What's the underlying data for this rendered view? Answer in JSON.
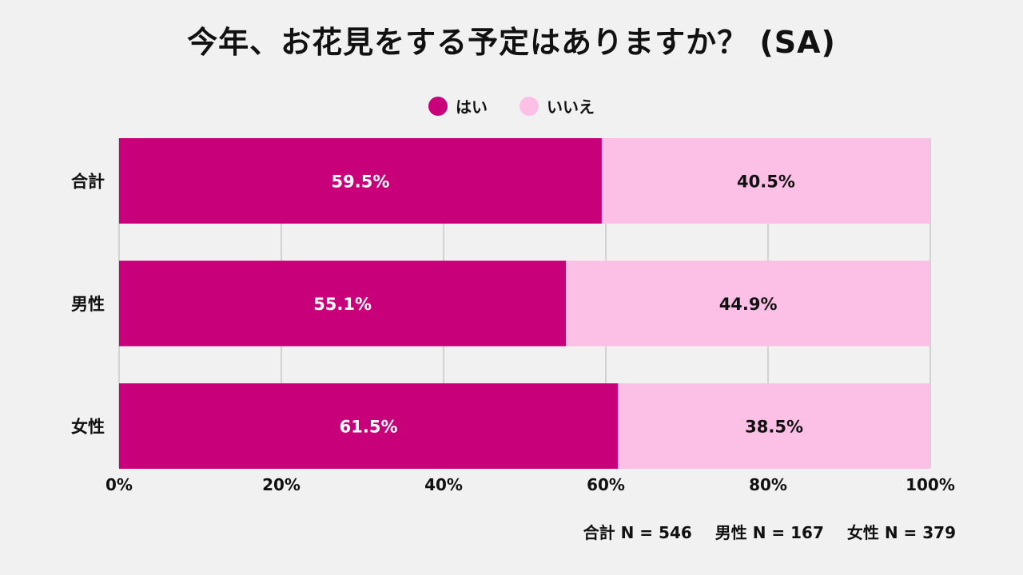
{
  "chart_data": {
    "type": "bar",
    "orientation": "horizontal",
    "stacked": true,
    "title": "今年、お花見をする予定はありますか？ (SA)",
    "categories": [
      "合計",
      "男性",
      "女性"
    ],
    "series": [
      {
        "name": "はい",
        "values": [
          59.5,
          55.1,
          61.5
        ],
        "labels": [
          "59.5%",
          "55.1%",
          "61.5%"
        ],
        "color": "#c8007a",
        "label_color": "#ffffff"
      },
      {
        "name": "いいえ",
        "values": [
          40.5,
          44.9,
          38.5
        ],
        "labels": [
          "40.5%",
          "44.9%",
          "38.5%"
        ],
        "color": "#fcc0e6",
        "label_color": "#111111"
      }
    ],
    "xlim": [
      0,
      100
    ],
    "xticks": [
      0,
      20,
      40,
      60,
      80,
      100
    ],
    "xtick_labels": [
      "0%",
      "20%",
      "40%",
      "60%",
      "80%",
      "100%"
    ],
    "grid": true,
    "legend_position": "top-center",
    "sample_sizes": [
      "合計 N = 546",
      "男性 N = 167",
      "女性 N = 379"
    ]
  }
}
